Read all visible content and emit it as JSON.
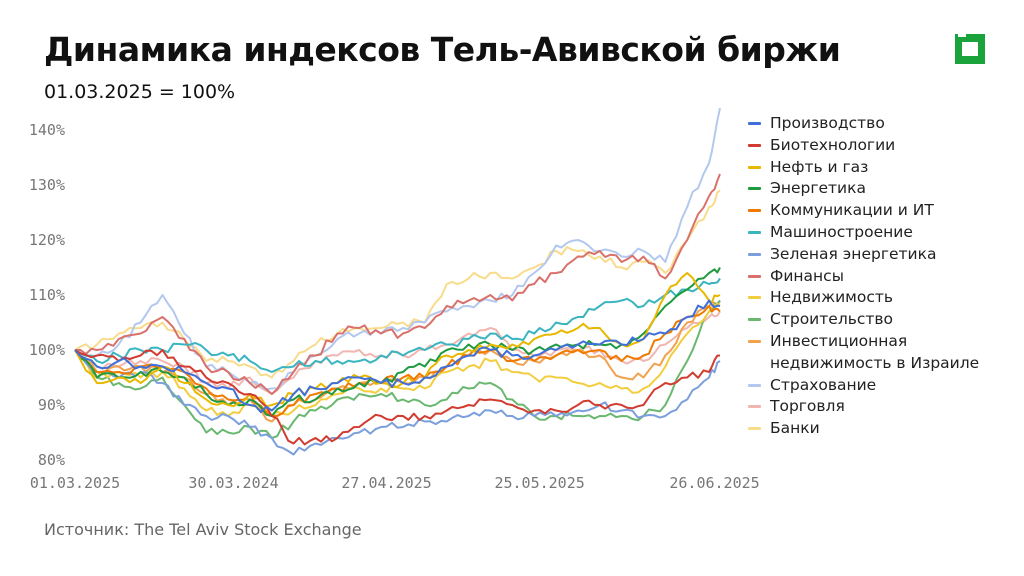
{
  "header": {
    "title": "Динамика индексов Тель-Авивской биржи",
    "subtitle": "01.03.2025 = 100%"
  },
  "logo": {
    "icon": "square-frame-logo-icon",
    "color": "#1aa33a"
  },
  "source": "Источник: The Tel Aviv Stock Exchange",
  "chart_data": {
    "type": "line",
    "title": "Динамика индексов Тель-Авивской биржи",
    "subtitle": "01.03.2025 = 100%",
    "xlabel": "",
    "ylabel": "",
    "ylim": [
      80,
      144
    ],
    "y_ticks": [
      80,
      90,
      100,
      110,
      120,
      130,
      140
    ],
    "y_tick_labels": [
      "80%",
      "90%",
      "100%",
      "110%",
      "120%",
      "130%",
      "140%"
    ],
    "x_range": [
      0,
      118
    ],
    "x_ticks": [
      0,
      29,
      57,
      85,
      117
    ],
    "x_tick_labels": [
      "01.03.2025",
      "30.03.2024",
      "27.04.2025",
      "25.05.2025",
      "26.06.2025"
    ],
    "grid": false,
    "legend_position": "right",
    "x": [
      0,
      4,
      8,
      12,
      16,
      20,
      24,
      28,
      32,
      36,
      40,
      44,
      48,
      52,
      56,
      60,
      64,
      68,
      72,
      76,
      80,
      84,
      88,
      92,
      96,
      100,
      104,
      108,
      112,
      116,
      118
    ],
    "series": [
      {
        "name": "Производство",
        "color": "#3f6fd8",
        "values": [
          100,
          97,
          98,
          97,
          97,
          96,
          94,
          93,
          90,
          89,
          92,
          93,
          94,
          95,
          94,
          94,
          95,
          97,
          99,
          100,
          99,
          99,
          100,
          101,
          101,
          101,
          102,
          103,
          106,
          109,
          108
        ]
      },
      {
        "name": "Биотехнологии",
        "color": "#d23b2f",
        "values": [
          100,
          99,
          98,
          99,
          100,
          97,
          95,
          94,
          92,
          88,
          83,
          84,
          84,
          86,
          88,
          88,
          88,
          89,
          90,
          91,
          90,
          89,
          89,
          90,
          90,
          90,
          90,
          94,
          95,
          96,
          99
        ]
      },
      {
        "name": "Нефть и газ",
        "color": "#e8b800",
        "values": [
          100,
          94,
          95,
          94,
          97,
          94,
          91,
          90,
          92,
          90,
          92,
          93,
          94,
          95,
          94,
          94,
          95,
          99,
          100,
          101,
          101,
          102,
          103,
          104,
          104,
          101,
          102,
          110,
          114,
          109,
          110
        ]
      },
      {
        "name": "Энергетика",
        "color": "#1f9a3f",
        "values": [
          100,
          95,
          95,
          96,
          96,
          95,
          92,
          90,
          91,
          88,
          91,
          91,
          93,
          94,
          94,
          96,
          97,
          100,
          101,
          101,
          100,
          100,
          101,
          101,
          101,
          101,
          103,
          108,
          111,
          114,
          115
        ]
      },
      {
        "name": "Коммуникации и ИТ",
        "color": "#f07a00",
        "values": [
          100,
          96,
          96,
          97,
          97,
          96,
          93,
          91,
          92,
          88,
          90,
          92,
          93,
          94,
          94,
          95,
          95,
          97,
          99,
          100,
          98,
          98,
          99,
          100,
          100,
          98,
          99,
          103,
          106,
          108,
          107
        ]
      },
      {
        "name": "Машиностроение",
        "color": "#3ab5c0",
        "values": [
          100,
          98,
          99,
          100,
          100,
          101,
          100,
          99,
          98,
          96,
          97,
          98,
          98,
          98,
          99,
          99,
          100,
          101,
          102,
          103,
          102,
          103,
          105,
          106,
          108,
          109,
          108,
          110,
          111,
          112,
          113
        ]
      },
      {
        "name": "Зеленая энергетика",
        "color": "#7b9fdd",
        "values": [
          100,
          96,
          95,
          96,
          94,
          90,
          88,
          88,
          86,
          84,
          81,
          83,
          84,
          85,
          86,
          86,
          87,
          87,
          88,
          89,
          88,
          88,
          88,
          89,
          90,
          89,
          88,
          88,
          91,
          95,
          98
        ]
      },
      {
        "name": "Финансы",
        "color": "#d9716a",
        "values": [
          100,
          100,
          102,
          103,
          106,
          102,
          97,
          96,
          94,
          92,
          96,
          99,
          103,
          104,
          103,
          103,
          104,
          108,
          109,
          110,
          109,
          112,
          114,
          117,
          118,
          116,
          117,
          113,
          120,
          128,
          132
        ]
      },
      {
        "name": "Недвижимость",
        "color": "#f2cd3e",
        "values": [
          100,
          95,
          96,
          95,
          96,
          93,
          89,
          88,
          90,
          88,
          89,
          90,
          92,
          93,
          93,
          93,
          93,
          96,
          97,
          98,
          96,
          95,
          95,
          94,
          94,
          93,
          93,
          97,
          103,
          107,
          108
        ]
      },
      {
        "name": "Строительство",
        "color": "#6ab870",
        "values": [
          100,
          95,
          94,
          93,
          95,
          90,
          85,
          85,
          86,
          84,
          87,
          89,
          91,
          92,
          92,
          91,
          90,
          91,
          93,
          94,
          91,
          88,
          88,
          88,
          88,
          88,
          88,
          90,
          98,
          107,
          109
        ]
      },
      {
        "name": "Инвестиционная недвижимость в Израиле",
        "color": "#f2a14f",
        "values": [
          100,
          96,
          97,
          97,
          96,
          95,
          92,
          90,
          91,
          87,
          90,
          91,
          93,
          94,
          94,
          94,
          95,
          97,
          99,
          100,
          98,
          98,
          99,
          100,
          99,
          95,
          95,
          99,
          105,
          108,
          109
        ]
      },
      {
        "name": "Страхование",
        "color": "#b3c8ee",
        "values": [
          100,
          99,
          101,
          105,
          110,
          103,
          97,
          96,
          94,
          93,
          96,
          99,
          102,
          103,
          103,
          104,
          105,
          107,
          108,
          109,
          110,
          114,
          119,
          120,
          118,
          117,
          118,
          116,
          126,
          134,
          144
        ]
      },
      {
        "name": "Торговля",
        "color": "#f1b6b0",
        "values": [
          100,
          97,
          97,
          98,
          98,
          97,
          94,
          93,
          95,
          92,
          95,
          98,
          99,
          100,
          99,
          99,
          100,
          101,
          103,
          104,
          100,
          99,
          100,
          100,
          100,
          98,
          98,
          101,
          104,
          106,
          107
        ]
      },
      {
        "name": "Банки",
        "color": "#f8dc8c",
        "values": [
          100,
          101,
          103,
          104,
          105,
          102,
          98,
          98,
          97,
          95,
          98,
          101,
          103,
          104,
          104,
          105,
          105,
          112,
          113,
          114,
          113,
          115,
          118,
          118,
          117,
          115,
          116,
          114,
          120,
          126,
          129
        ]
      }
    ]
  }
}
